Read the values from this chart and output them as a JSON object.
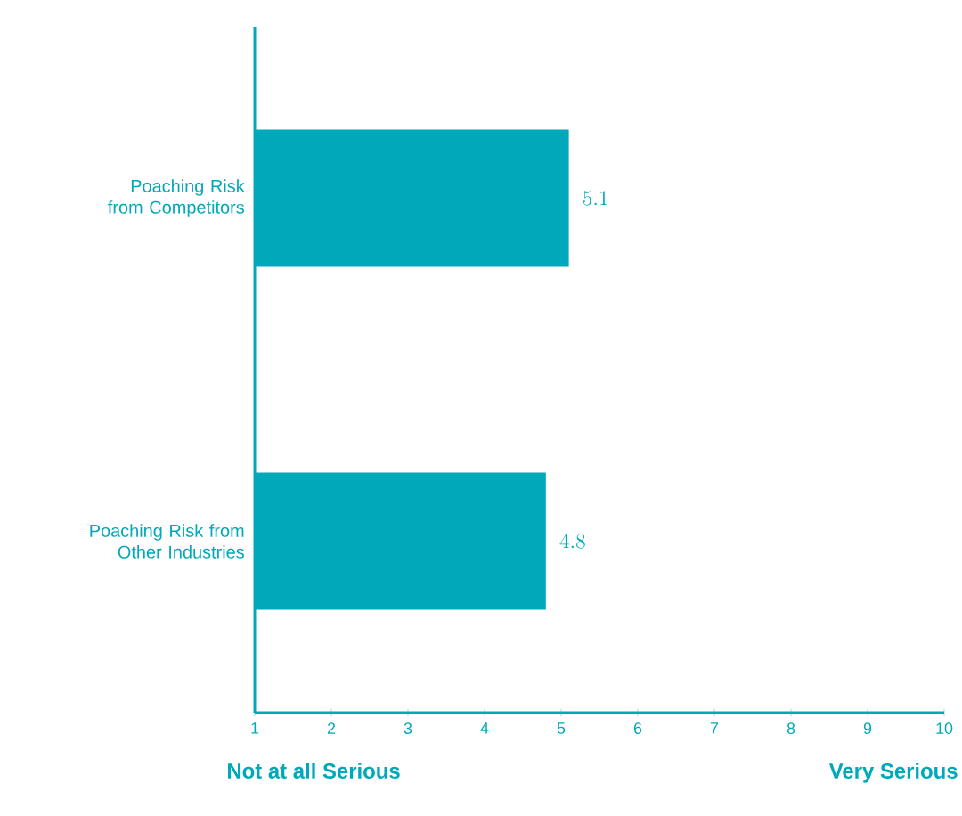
{
  "chart_data": {
    "type": "bar",
    "orientation": "horizontal",
    "categories": [
      "Poaching Risk from Competitors",
      "Poaching Risk from Other Industries"
    ],
    "values": [
      5.1,
      4.8
    ],
    "color": "#00a9b9",
    "xlim": [
      1,
      10
    ],
    "xticks": [
      1,
      2,
      3,
      4,
      5,
      6,
      7,
      8,
      9,
      10
    ],
    "data_labels": true,
    "annotations": [
      "Not at all Serious",
      "Very Serious"
    ]
  }
}
